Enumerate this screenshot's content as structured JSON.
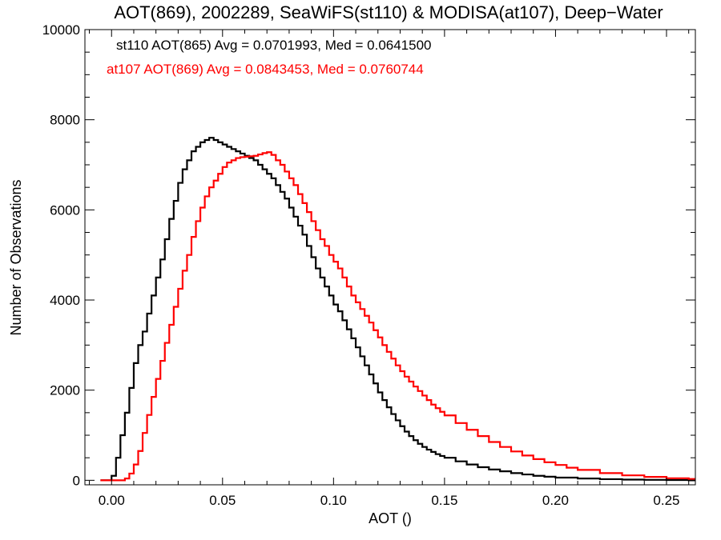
{
  "chart_data": {
    "type": "line",
    "title": "AOT(869), 2002289, SeaWiFS(st110) & MODISA(at107), Deep−Water",
    "xlabel": "AOT ()",
    "ylabel": "Number of Observations",
    "xlim": [
      -0.012,
      0.263
    ],
    "ylim": [
      -100,
      10000
    ],
    "x_ticks": [
      {
        "value": 0.0,
        "label": "0.00"
      },
      {
        "value": 0.05,
        "label": "0.05"
      },
      {
        "value": 0.1,
        "label": "0.10"
      },
      {
        "value": 0.15,
        "label": "0.15"
      },
      {
        "value": 0.2,
        "label": "0.20"
      },
      {
        "value": 0.25,
        "label": "0.25"
      }
    ],
    "y_ticks": [
      {
        "value": 0,
        "label": "0"
      },
      {
        "value": 2000,
        "label": "2000"
      },
      {
        "value": 4000,
        "label": "4000"
      },
      {
        "value": 6000,
        "label": "6000"
      },
      {
        "value": 8000,
        "label": "8000"
      },
      {
        "value": 10000,
        "label": "10000"
      }
    ],
    "step": "histogram",
    "grid": false,
    "legend_position": "top-left",
    "series": [
      {
        "name": "st110 AOT(865) Avg = 0.0701993, Med = 0.0641500",
        "color": "#000000",
        "x": [
          -0.005,
          0.0,
          0.002,
          0.004,
          0.006,
          0.008,
          0.01,
          0.012,
          0.014,
          0.016,
          0.018,
          0.02,
          0.022,
          0.024,
          0.026,
          0.028,
          0.03,
          0.032,
          0.034,
          0.036,
          0.038,
          0.04,
          0.042,
          0.044,
          0.046,
          0.048,
          0.05,
          0.052,
          0.054,
          0.056,
          0.058,
          0.06,
          0.062,
          0.064,
          0.066,
          0.068,
          0.07,
          0.072,
          0.074,
          0.076,
          0.078,
          0.08,
          0.082,
          0.084,
          0.086,
          0.088,
          0.09,
          0.092,
          0.094,
          0.096,
          0.098,
          0.1,
          0.102,
          0.104,
          0.106,
          0.108,
          0.11,
          0.112,
          0.114,
          0.116,
          0.118,
          0.12,
          0.122,
          0.124,
          0.126,
          0.128,
          0.13,
          0.132,
          0.134,
          0.136,
          0.138,
          0.14,
          0.142,
          0.144,
          0.146,
          0.148,
          0.15,
          0.155,
          0.16,
          0.165,
          0.17,
          0.175,
          0.18,
          0.185,
          0.19,
          0.195,
          0.2,
          0.21,
          0.22,
          0.23,
          0.24,
          0.25,
          0.26
        ],
        "y": [
          0,
          100,
          500,
          1000,
          1500,
          2050,
          2600,
          3000,
          3300,
          3700,
          4100,
          4500,
          4900,
          5350,
          5800,
          6200,
          6600,
          6900,
          7100,
          7300,
          7400,
          7500,
          7550,
          7600,
          7550,
          7500,
          7450,
          7400,
          7350,
          7300,
          7250,
          7200,
          7150,
          7100,
          7000,
          6900,
          6800,
          6700,
          6550,
          6400,
          6250,
          6050,
          5850,
          5650,
          5450,
          5200,
          4950,
          4700,
          4500,
          4300,
          4100,
          3900,
          3750,
          3550,
          3350,
          3150,
          2950,
          2750,
          2550,
          2350,
          2150,
          1950,
          1780,
          1620,
          1470,
          1330,
          1200,
          1080,
          980,
          890,
          810,
          740,
          680,
          630,
          580,
          540,
          500,
          420,
          350,
          290,
          240,
          200,
          160,
          130,
          100,
          80,
          60,
          40,
          25,
          15,
          10,
          5,
          0
        ]
      },
      {
        "name": "at107 AOT(869) Avg = 0.0843453, Med = 0.0760744",
        "color": "#ff0000",
        "x": [
          -0.005,
          0.006,
          0.008,
          0.01,
          0.012,
          0.014,
          0.016,
          0.018,
          0.02,
          0.022,
          0.024,
          0.026,
          0.028,
          0.03,
          0.032,
          0.034,
          0.036,
          0.038,
          0.04,
          0.042,
          0.044,
          0.046,
          0.048,
          0.05,
          0.052,
          0.054,
          0.056,
          0.058,
          0.06,
          0.062,
          0.064,
          0.066,
          0.068,
          0.07,
          0.072,
          0.074,
          0.076,
          0.078,
          0.08,
          0.082,
          0.084,
          0.086,
          0.088,
          0.09,
          0.092,
          0.094,
          0.096,
          0.098,
          0.1,
          0.102,
          0.104,
          0.106,
          0.108,
          0.11,
          0.112,
          0.114,
          0.116,
          0.118,
          0.12,
          0.122,
          0.124,
          0.126,
          0.128,
          0.13,
          0.132,
          0.134,
          0.136,
          0.138,
          0.14,
          0.142,
          0.144,
          0.146,
          0.148,
          0.15,
          0.155,
          0.16,
          0.165,
          0.17,
          0.175,
          0.18,
          0.185,
          0.19,
          0.195,
          0.2,
          0.205,
          0.21,
          0.22,
          0.23,
          0.24,
          0.25,
          0.26
        ],
        "y": [
          0,
          40,
          150,
          350,
          650,
          1050,
          1450,
          1850,
          2250,
          2650,
          3050,
          3450,
          3850,
          4250,
          4650,
          5000,
          5400,
          5750,
          6050,
          6300,
          6500,
          6650,
          6800,
          6950,
          7050,
          7100,
          7150,
          7170,
          7180,
          7190,
          7200,
          7230,
          7260,
          7280,
          7220,
          7100,
          7000,
          6850,
          6700,
          6550,
          6350,
          6150,
          5950,
          5750,
          5550,
          5350,
          5200,
          5000,
          4850,
          4700,
          4500,
          4300,
          4100,
          3950,
          3800,
          3650,
          3500,
          3330,
          3170,
          3000,
          2850,
          2700,
          2550,
          2420,
          2300,
          2190,
          2080,
          1980,
          1880,
          1780,
          1680,
          1600,
          1520,
          1440,
          1270,
          1120,
          980,
          850,
          740,
          640,
          550,
          470,
          400,
          340,
          280,
          230,
          160,
          110,
          75,
          45,
          30
        ]
      }
    ]
  }
}
